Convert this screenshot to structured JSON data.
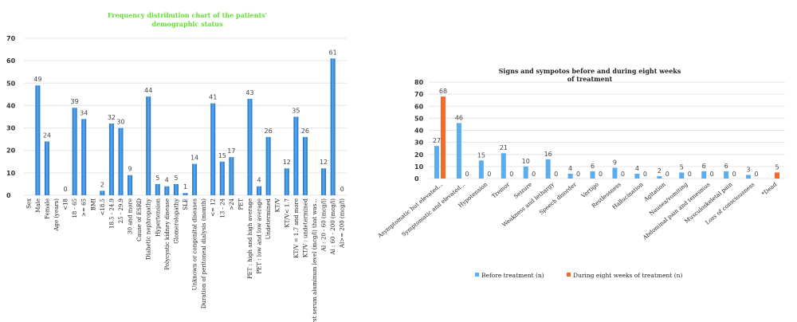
{
  "chart_data": [
    {
      "type": "bar",
      "title_lines": [
        "Frequency distribution chart of the patients'",
        "demographic status"
      ],
      "title_color": "#66dd33",
      "bar_color": "#3a8ee0",
      "ylim": [
        0,
        70
      ],
      "yticks": [
        0,
        10,
        20,
        30,
        40,
        50,
        60,
        70
      ],
      "grid": true,
      "categories": [
        "Sex",
        "Male",
        "Female",
        "Age (years)",
        "<18",
        "18 - 65",
        ">= 65",
        "BMI",
        "<18.5",
        "18.5 - 24.9",
        "25 - 29.9",
        "30 and more",
        "Cause of ESRD",
        "Diabetic nephropathy",
        "Hypertension",
        "Polycystic kidney disease",
        "Glomerolopathy",
        "SLE",
        "Unknown or congenital diseases",
        "Duration of peritoneal dialysis (month)",
        "<= 12",
        "13 - 24",
        ">24",
        "PET",
        "PET : high and high average",
        "PET : low and low average",
        "Undetermined",
        "KT/V",
        "KT/V< 1.7",
        "KT/V = 1.7 and more",
        "KT/V : undetermined",
        "First serum aluminum level (mcg/l) that was...",
        "Al : 20 - 60 (mcg/l)",
        "Al : 60 - 200 (mcg/l)",
        "Al>= 200 (mcg/l)"
      ],
      "values": [
        null,
        49,
        24,
        null,
        0,
        39,
        34,
        null,
        2,
        32,
        30,
        9,
        null,
        44,
        5,
        4,
        5,
        1,
        14,
        null,
        41,
        15,
        17,
        null,
        43,
        4,
        26,
        null,
        12,
        35,
        26,
        null,
        12,
        61,
        0
      ]
    },
    {
      "type": "bar",
      "title_lines": [
        "Signs and sympotos before and during eight weeks",
        "of treatment"
      ],
      "ylim": [
        0,
        80
      ],
      "yticks": [
        0,
        10,
        20,
        30,
        40,
        50,
        60,
        70,
        80
      ],
      "grid": true,
      "legend_position": "bottom",
      "categories": [
        "Asymptomatic but elevated...",
        "Symptomatic and elevated...",
        "Hypotension",
        "Tremor",
        "Seizure",
        "Weakness and lethargy",
        "Speech disorder",
        "Vertigo",
        "Restlessness",
        "Hallucination",
        "Agitation",
        "Nausea/vomiting",
        "Abdominal pain and tenesmus",
        "Musculoskeletal pain",
        "Loss of consciousness",
        "*Dead"
      ],
      "series": [
        {
          "name": "Before treatment (n)",
          "color": "#5aaef0",
          "values": [
            27,
            46,
            15,
            21,
            10,
            16,
            4,
            6,
            9,
            4,
            2,
            5,
            6,
            6,
            3,
            null
          ]
        },
        {
          "name": "During eight weeks of treatment (n)",
          "color": "#f26b2b",
          "values": [
            68,
            0,
            0,
            0,
            0,
            0,
            0,
            0,
            0,
            0,
            0,
            0,
            0,
            0,
            0,
            5
          ]
        }
      ]
    }
  ]
}
